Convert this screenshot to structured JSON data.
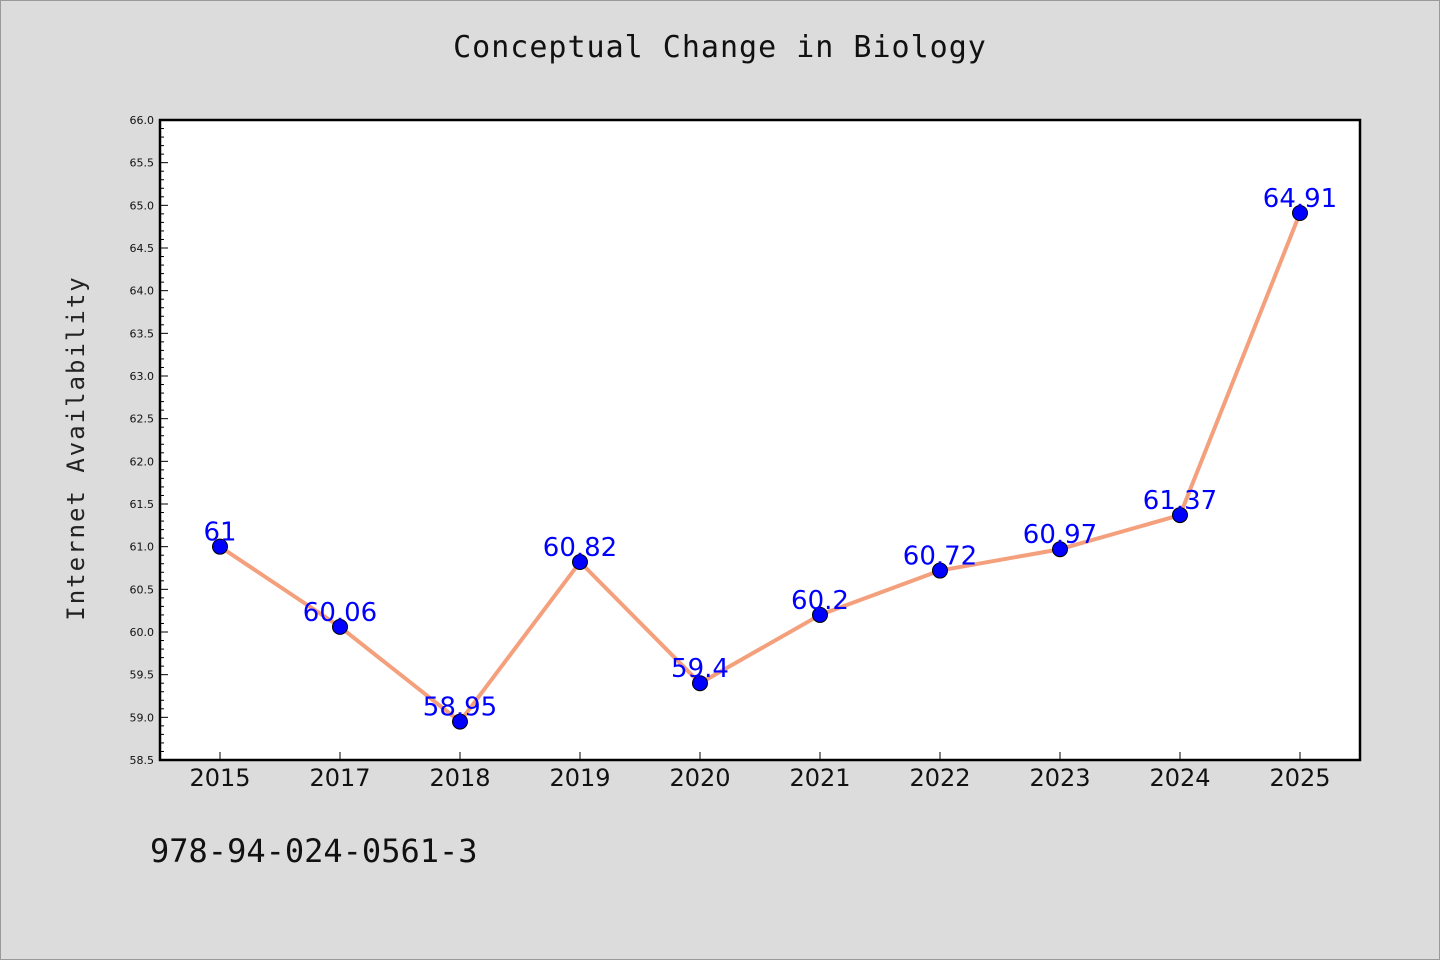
{
  "chart_data": {
    "type": "line",
    "title": "Conceptual Change in Biology",
    "xlabel": "",
    "ylabel": "Internet Availability",
    "categories": [
      "2015",
      "2017",
      "2018",
      "2019",
      "2020",
      "2021",
      "2022",
      "2023",
      "2024",
      "2025"
    ],
    "series": [
      {
        "values": [
          61,
          60.06,
          58.95,
          60.82,
          59.4,
          60.2,
          60.72,
          60.97,
          61.37,
          64.91
        ],
        "labels": [
          "61",
          "60.06",
          "58.95",
          "60.82",
          "59.4",
          "60.2",
          "60.72",
          "60.97",
          "61.37",
          "64.91"
        ]
      }
    ],
    "ylim": [
      58.5,
      66.0
    ],
    "yticks": [
      "58.5",
      "59.0",
      "59.5",
      "60.0",
      "60.5",
      "61.0",
      "61.5",
      "62.0",
      "62.5",
      "63.0",
      "63.5",
      "64.0",
      "64.5",
      "65.0",
      "65.5",
      "66.0"
    ],
    "grid": false,
    "colors": {
      "line": "#f4a07c",
      "marker": "#0000ff",
      "label": "#0000ff",
      "background": "#dcdcdc",
      "plot_area": "#ffffff"
    }
  },
  "footer": {
    "code": "978-94-024-0561-3"
  }
}
